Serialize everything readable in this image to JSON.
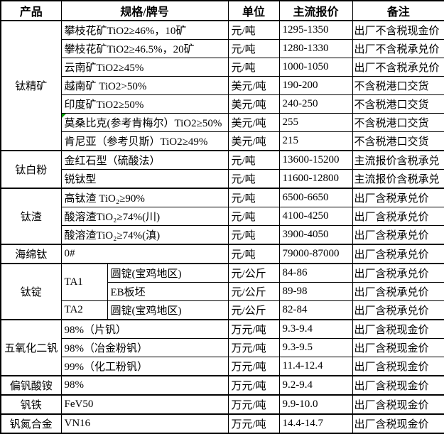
{
  "colors": {
    "marker_green": "#00A000",
    "border": "#000000",
    "text": "#000000",
    "background": "#FFFFFF"
  },
  "table": {
    "columns": [
      {
        "id": "product",
        "label": "产品",
        "colspan": 1
      },
      {
        "id": "spec",
        "label": "规格/牌号",
        "colspan": 2
      },
      {
        "id": "unit",
        "label": "单位",
        "colspan": 1
      },
      {
        "id": "price",
        "label": "主流报价",
        "colspan": 1
      },
      {
        "id": "note",
        "label": "备注",
        "colspan": 1
      }
    ],
    "rows": [
      {
        "group_start": true,
        "cells": [
          {
            "type": "product",
            "text": "钛精矿",
            "rowspan": 7
          },
          {
            "type": "spec",
            "text": "攀枝花矿TiO2≥46%，10矿",
            "colspan": 2
          },
          {
            "type": "unit",
            "text": "元/吨"
          },
          {
            "type": "price",
            "text": "1295-1350"
          },
          {
            "type": "note",
            "text": "出厂不含税现金价"
          }
        ]
      },
      {
        "cells": [
          {
            "type": "spec",
            "text": "攀枝花矿TiO2≥46.5%，20矿",
            "colspan": 2
          },
          {
            "type": "unit",
            "text": "元/吨"
          },
          {
            "type": "price",
            "text": "1280-1330"
          },
          {
            "type": "note",
            "text": "出厂不含税承兑价"
          }
        ]
      },
      {
        "cells": [
          {
            "type": "spec",
            "text": "云南矿TiO2≥45%",
            "colspan": 2
          },
          {
            "type": "unit",
            "text": "元/吨"
          },
          {
            "type": "price",
            "text": "1000-1050"
          },
          {
            "type": "note",
            "text": "出厂不含税承兑价"
          }
        ]
      },
      {
        "cells": [
          {
            "type": "spec",
            "text": "越南矿 TiO2>50%",
            "colspan": 2
          },
          {
            "type": "unit",
            "text": "美元/吨"
          },
          {
            "type": "price",
            "text": "190-200"
          },
          {
            "type": "note",
            "text": "不含税港口交货"
          }
        ]
      },
      {
        "cells": [
          {
            "type": "spec",
            "text": "印度矿TiO2≥50%",
            "colspan": 2
          },
          {
            "type": "unit",
            "text": "美元/吨"
          },
          {
            "type": "price",
            "text": "240-250"
          },
          {
            "type": "note",
            "text": "不含税港口交货"
          }
        ]
      },
      {
        "cells": [
          {
            "type": "spec",
            "text": "莫桑比克(参考肯梅尔）TiO2≥50%",
            "colspan": 2,
            "marker": true
          },
          {
            "type": "unit",
            "text": "美元/吨"
          },
          {
            "type": "price",
            "text": "255"
          },
          {
            "type": "note",
            "text": "不含税港口交货"
          }
        ]
      },
      {
        "cells": [
          {
            "type": "spec",
            "text": "肯尼亚（参考贝斯）TiO2≥49%",
            "colspan": 2
          },
          {
            "type": "unit",
            "text": "美元/吨"
          },
          {
            "type": "price",
            "text": "215"
          },
          {
            "type": "note",
            "text": "不含税港口交货"
          }
        ]
      },
      {
        "group_start": true,
        "cells": [
          {
            "type": "product",
            "text": "钛白粉",
            "rowspan": 2
          },
          {
            "type": "spec",
            "text": "金红石型（硫酸法）",
            "colspan": 2
          },
          {
            "type": "unit",
            "text": "元/吨"
          },
          {
            "type": "price",
            "text": "13600-15200"
          },
          {
            "type": "note",
            "text": "主流报价含税承兑"
          }
        ]
      },
      {
        "cells": [
          {
            "type": "spec",
            "text": "锐钛型",
            "colspan": 2
          },
          {
            "type": "unit",
            "text": "元/吨"
          },
          {
            "type": "price",
            "text": "11600-12800"
          },
          {
            "type": "note",
            "text": "主流报价含税承兑"
          }
        ]
      },
      {
        "group_start": true,
        "cells": [
          {
            "type": "product",
            "text": "钛渣",
            "rowspan": 3
          },
          {
            "type": "spec",
            "text": "高钛渣 TiO₂≥90%",
            "colspan": 2
          },
          {
            "type": "unit",
            "text": "元/吨"
          },
          {
            "type": "price",
            "text": "6500-6650"
          },
          {
            "type": "note",
            "text": "出厂含税承兑价"
          }
        ]
      },
      {
        "cells": [
          {
            "type": "spec",
            "text": "酸溶渣TiO₂≥74%(川)",
            "colspan": 2
          },
          {
            "type": "unit",
            "text": "元/吨"
          },
          {
            "type": "price",
            "text": "4100-4250"
          },
          {
            "type": "note",
            "text": "出厂含税承兑价"
          }
        ]
      },
      {
        "cells": [
          {
            "type": "spec",
            "text": "酸溶渣TiO₂≥74%(滇)",
            "colspan": 2
          },
          {
            "type": "unit",
            "text": "元/吨"
          },
          {
            "type": "price",
            "text": "3900-4050"
          },
          {
            "type": "note",
            "text": "出厂含税承兑价"
          }
        ]
      },
      {
        "group_start": true,
        "cells": [
          {
            "type": "product",
            "text": "海绵钛"
          },
          {
            "type": "spec",
            "text": "0#",
            "colspan": 2
          },
          {
            "type": "unit",
            "text": "元/吨"
          },
          {
            "type": "price",
            "text": "79000-87000"
          },
          {
            "type": "note",
            "text": "出厂含税承兑价"
          }
        ]
      },
      {
        "group_start": true,
        "cells": [
          {
            "type": "product",
            "text": "钛锭",
            "rowspan": 3
          },
          {
            "type": "grade",
            "text": "TA1",
            "rowspan": 2
          },
          {
            "type": "spec",
            "text": "圆锭(宝鸡地区)"
          },
          {
            "type": "unit",
            "text": "元/公斤"
          },
          {
            "type": "price",
            "text": "84-86"
          },
          {
            "type": "note",
            "text": "出厂含税承兑价"
          }
        ]
      },
      {
        "cells": [
          {
            "type": "spec",
            "text": "EB板坯"
          },
          {
            "type": "unit",
            "text": "元/公斤"
          },
          {
            "type": "price",
            "text": "89-98"
          },
          {
            "type": "note",
            "text": "出厂含税承兑价"
          }
        ]
      },
      {
        "cells": [
          {
            "type": "grade",
            "text": "TA2"
          },
          {
            "type": "spec",
            "text": "圆锭(宝鸡地区)"
          },
          {
            "type": "unit",
            "text": "元/公斤"
          },
          {
            "type": "price",
            "text": "82-84"
          },
          {
            "type": "note",
            "text": "出厂含税承兑价"
          }
        ]
      },
      {
        "group_start": true,
        "cells": [
          {
            "type": "product",
            "text": "五氧化二钒",
            "rowspan": 3
          },
          {
            "type": "spec",
            "text": "98%（片钒）",
            "colspan": 2
          },
          {
            "type": "unit",
            "text": "万元/吨"
          },
          {
            "type": "price",
            "text": "9.3-9.4"
          },
          {
            "type": "note",
            "text": "出厂含税现金价"
          }
        ]
      },
      {
        "cells": [
          {
            "type": "spec",
            "text": "98%（冶金粉钒）",
            "colspan": 2
          },
          {
            "type": "unit",
            "text": "万元/吨"
          },
          {
            "type": "price",
            "text": "9.3-9.5"
          },
          {
            "type": "note",
            "text": "出厂含税现金价"
          }
        ]
      },
      {
        "cells": [
          {
            "type": "spec",
            "text": "99%（化工粉钒）",
            "colspan": 2
          },
          {
            "type": "unit",
            "text": "万元/吨"
          },
          {
            "type": "price",
            "text": "11.4-12.4"
          },
          {
            "type": "note",
            "text": "出厂含税现金价"
          }
        ]
      },
      {
        "group_start": true,
        "cells": [
          {
            "type": "product",
            "text": "偏钒酸铵"
          },
          {
            "type": "spec",
            "text": "98%",
            "colspan": 2
          },
          {
            "type": "unit",
            "text": "万元/吨"
          },
          {
            "type": "price",
            "text": "9.2-9.4"
          },
          {
            "type": "note",
            "text": "出厂含税现金价"
          }
        ]
      },
      {
        "group_start": true,
        "cells": [
          {
            "type": "product",
            "text": "钒铁"
          },
          {
            "type": "spec",
            "text": "FeV50",
            "colspan": 2
          },
          {
            "type": "unit",
            "text": "万元/吨"
          },
          {
            "type": "price",
            "text": "9.9-10.0"
          },
          {
            "type": "note",
            "text": "出厂含税现金价"
          }
        ]
      },
      {
        "group_start": true,
        "cells": [
          {
            "type": "product",
            "text": "钒氮合金"
          },
          {
            "type": "spec",
            "text": "VN16",
            "colspan": 2
          },
          {
            "type": "unit",
            "text": "万元/吨"
          },
          {
            "type": "price",
            "text": "14.4-14.7"
          },
          {
            "type": "note",
            "text": "出厂含税现金价"
          }
        ]
      }
    ]
  }
}
